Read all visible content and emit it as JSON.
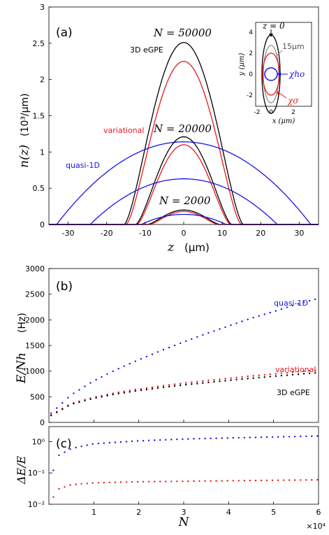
{
  "colors": {
    "eGPE": "#000000",
    "variational": "#e8171e",
    "quasi1D": "#1414e8",
    "inset_grey": "#8c8c8c"
  },
  "panel_a": {
    "label": "(a)",
    "xlabel": "z",
    "xunit": "(μm)",
    "ylabel": "n(z)",
    "yunit": "(10³/μm)",
    "xticks": [
      "-30",
      "-20",
      "-10",
      "0",
      "10",
      "20",
      "30"
    ],
    "yticks": [
      "0",
      "0.5",
      "1",
      "1.5",
      "2",
      "2.5",
      "3"
    ],
    "n_labels": [
      "N = 50000",
      "N = 20000",
      "N = 2000"
    ],
    "label_egpe": "3D eGPE",
    "label_var": "variational",
    "label_q1d": "quasi-1D",
    "inset": {
      "xlabel": "x  (μm)",
      "ylabel": "y  (μm)",
      "xticks": [
        "-2",
        "0",
        "2"
      ],
      "yticks": [
        "4",
        "2",
        "0",
        "-2"
      ],
      "z0": "z = 0",
      "z15": "15μm",
      "chi_ho": "χho",
      "chi_sigma": "χσ"
    }
  },
  "panel_b": {
    "label": "(b)",
    "ylabel": "E/Nh",
    "yunit": "(Hz)",
    "yticks": [
      "0",
      "500",
      "1000",
      "1500",
      "2000",
      "2500",
      "3000"
    ],
    "label_q1d": "quasi-1D",
    "label_var": "variational",
    "label_egpe": "3D eGPE"
  },
  "panel_c": {
    "label": "(c)",
    "ylabel": "ΔE/E",
    "yticks": [
      "10⁰",
      "10⁻¹",
      "10⁻²"
    ],
    "xticks": [
      "1",
      "2",
      "3",
      "4",
      "5",
      "6"
    ],
    "xlabel": "N",
    "multiplier": "×10⁴"
  },
  "chart_data": [
    {
      "type": "line",
      "xlabel": "z (μm)",
      "ylabel": "n(z) (10³/μm)",
      "xlim": [
        -35,
        35
      ],
      "ylim": [
        0,
        3
      ],
      "series": [
        {
          "name": "3D eGPE",
          "N": 50000,
          "peak": 2.51,
          "half_width": 15.5,
          "shape": "bell"
        },
        {
          "name": "variational",
          "N": 50000,
          "peak": 2.25,
          "half_width": 15.0,
          "shape": "bell"
        },
        {
          "name": "quasi-1D",
          "N": 50000,
          "peak": 1.14,
          "half_width": 33,
          "shape": "parabola"
        },
        {
          "name": "3D eGPE",
          "N": 20000,
          "peak": 1.21,
          "half_width": 12.5,
          "shape": "bell"
        },
        {
          "name": "variational",
          "N": 20000,
          "peak": 1.1,
          "half_width": 12.2,
          "shape": "bell"
        },
        {
          "name": "quasi-1D",
          "N": 20000,
          "peak": 0.63,
          "half_width": 24.3,
          "shape": "parabola"
        },
        {
          "name": "3D eGPE",
          "N": 2000,
          "peak": 0.2,
          "half_width": 9.5,
          "shape": "bell"
        },
        {
          "name": "variational",
          "N": 2000,
          "peak": 0.18,
          "half_width": 9.0,
          "shape": "bell"
        },
        {
          "name": "quasi-1D",
          "N": 2000,
          "peak": 0.14,
          "half_width": 11,
          "shape": "parabola"
        }
      ]
    },
    {
      "type": "scatter",
      "ylabel": "E/Nh (Hz)",
      "xlim": [
        0,
        60000
      ],
      "ylim": [
        0,
        3000
      ],
      "series": [
        {
          "name": "quasi-1D",
          "x": [
            1000,
            5000,
            10000,
            15000,
            20000,
            25000,
            30000,
            35000,
            40000,
            45000,
            50000,
            55000,
            60000
          ],
          "y": [
            220,
            540,
            810,
            1030,
            1220,
            1400,
            1570,
            1730,
            1880,
            2030,
            2160,
            2300,
            2420
          ]
        },
        {
          "name": "variational",
          "x": [
            1000,
            5000,
            10000,
            15000,
            20000,
            25000,
            30000,
            35000,
            40000,
            45000,
            50000,
            55000,
            60000
          ],
          "y": [
            170,
            370,
            490,
            580,
            650,
            710,
            765,
            815,
            860,
            905,
            945,
            985,
            1020
          ]
        },
        {
          "name": "3D eGPE",
          "x": [
            1000,
            5000,
            10000,
            15000,
            20000,
            25000,
            30000,
            35000,
            40000,
            45000,
            50000,
            55000,
            60000
          ],
          "y": [
            160,
            355,
            470,
            555,
            620,
            680,
            730,
            775,
            820,
            860,
            900,
            935,
            970
          ]
        }
      ]
    },
    {
      "type": "scatter",
      "xlabel": "N",
      "ylabel": "ΔE/E",
      "yscale": "log",
      "xlim": [
        0,
        60000
      ],
      "ylim": [
        0.01,
        3
      ],
      "series": [
        {
          "name": "quasi-1D",
          "x": [
            1000,
            2000,
            5000,
            10000,
            20000,
            30000,
            40000,
            50000,
            60000
          ],
          "y": [
            0.12,
            0.35,
            0.6,
            0.85,
            1.05,
            1.2,
            1.3,
            1.4,
            1.5
          ]
        },
        {
          "name": "variational",
          "x": [
            1000,
            2000,
            5000,
            10000,
            20000,
            30000,
            40000,
            50000,
            60000
          ],
          "y": [
            0.017,
            0.03,
            0.042,
            0.048,
            0.052,
            0.054,
            0.056,
            0.058,
            0.06
          ]
        }
      ]
    }
  ]
}
